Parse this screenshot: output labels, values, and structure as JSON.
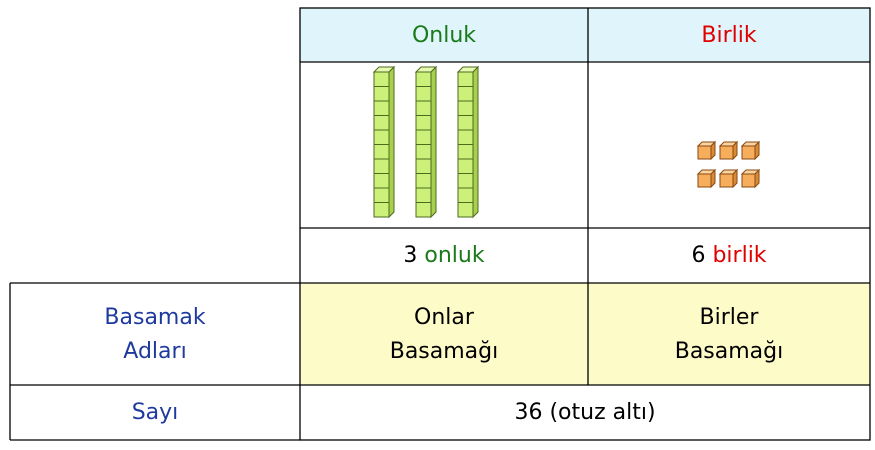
{
  "table": {
    "header": [
      "Onluk",
      "Birlik"
    ],
    "counts": [
      {
        "count": 3,
        "unit": "onluk"
      },
      {
        "count": 6,
        "unit": "birlik"
      }
    ],
    "rows": [
      {
        "label": [
          "Basamak",
          "Adları"
        ],
        "cells": [
          [
            "Onlar",
            "Basamağı"
          ],
          [
            "Birler",
            "Basamağı"
          ]
        ]
      },
      {
        "label": [
          "Sayı"
        ],
        "value": "36 (otuz altı)"
      }
    ]
  }
}
